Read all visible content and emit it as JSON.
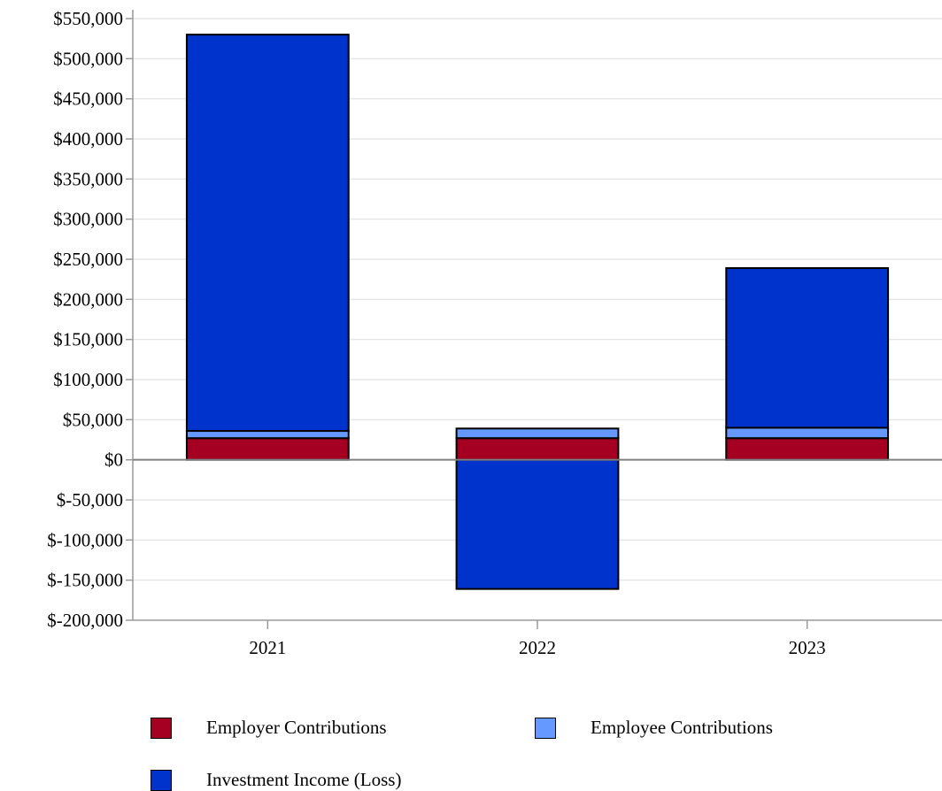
{
  "chart_data": {
    "type": "bar",
    "stacked": true,
    "categories": [
      "2021",
      "2022",
      "2023"
    ],
    "series": [
      {
        "name": "Employer Contributions",
        "color": "#a50021",
        "values": [
          27000,
          27000,
          27000
        ]
      },
      {
        "name": "Employee Contributions",
        "color": "#6699ff",
        "values": [
          9000,
          12000,
          13000
        ]
      },
      {
        "name": "Investment Income (Loss)",
        "color": "#0033cc",
        "values": [
          494000,
          -161000,
          199000
        ]
      }
    ],
    "ylim": [
      -200000,
      550000
    ],
    "yticks": [
      "$550,000",
      "$500,000",
      "$450,000",
      "$400,000",
      "$350,000",
      "$300,000",
      "$250,000",
      "$200,000",
      "$150,000",
      "$100,000",
      "$50,000",
      "$0",
      "$-50,000",
      "$-100,000",
      "$-150,000",
      "$-200,000"
    ],
    "grid": true,
    "legend_position": "bottom",
    "title": "",
    "xlabel": "",
    "ylabel": ""
  }
}
